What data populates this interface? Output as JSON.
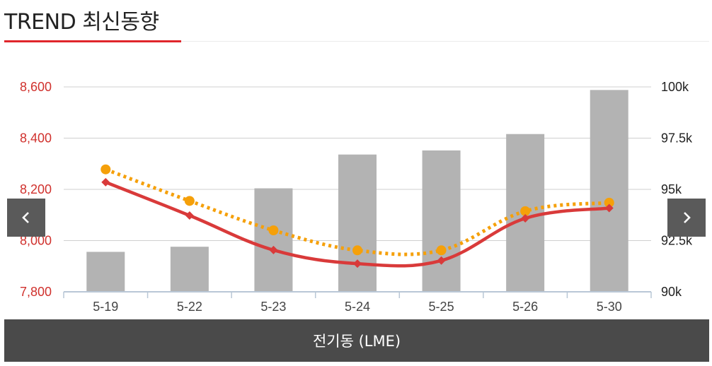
{
  "header": {
    "title": "TREND 최신동향"
  },
  "footer": {
    "label": "전기동 (LME)"
  },
  "nav": {
    "prev_icon": "chevron-left-icon",
    "next_icon": "chevron-right-icon"
  },
  "colors": {
    "accent": "#e0262b",
    "bar": "#b3b3b3",
    "line_primary": "#d93a3a",
    "line_secondary": "#f5a00a",
    "footer_bg": "#4a4a4a"
  },
  "chart_data": {
    "type": "bar",
    "categories": [
      "5-19",
      "5-22",
      "5-23",
      "5-24",
      "5-25",
      "5-26",
      "5-30"
    ],
    "left_axis": {
      "ylim": [
        7800,
        8600
      ],
      "ticks": [
        "7,800",
        "8,000",
        "8,200",
        "8,400",
        "8,600"
      ],
      "tick_values": [
        7800,
        8000,
        8200,
        8400,
        8600
      ]
    },
    "right_axis": {
      "ylim": [
        90000,
        100000
      ],
      "ticks": [
        "90k",
        "92.5k",
        "95k",
        "97.5k",
        "100k"
      ],
      "tick_values": [
        90000,
        92500,
        95000,
        97500,
        100000
      ]
    },
    "grid": true,
    "series": [
      {
        "kind": "bar",
        "axis": "right",
        "values": [
          91950,
          92200,
          95050,
          96700,
          96900,
          97700,
          99850
        ]
      },
      {
        "kind": "line",
        "axis": "left",
        "style": "solid",
        "marker": "diamond",
        "values": [
          8228,
          8098,
          7963,
          7910,
          7922,
          8087,
          8127
        ]
      },
      {
        "kind": "line",
        "axis": "left",
        "style": "dotted",
        "marker": "circle",
        "values": [
          8278,
          8155,
          8040,
          7962,
          7962,
          8115,
          8148
        ]
      }
    ]
  }
}
